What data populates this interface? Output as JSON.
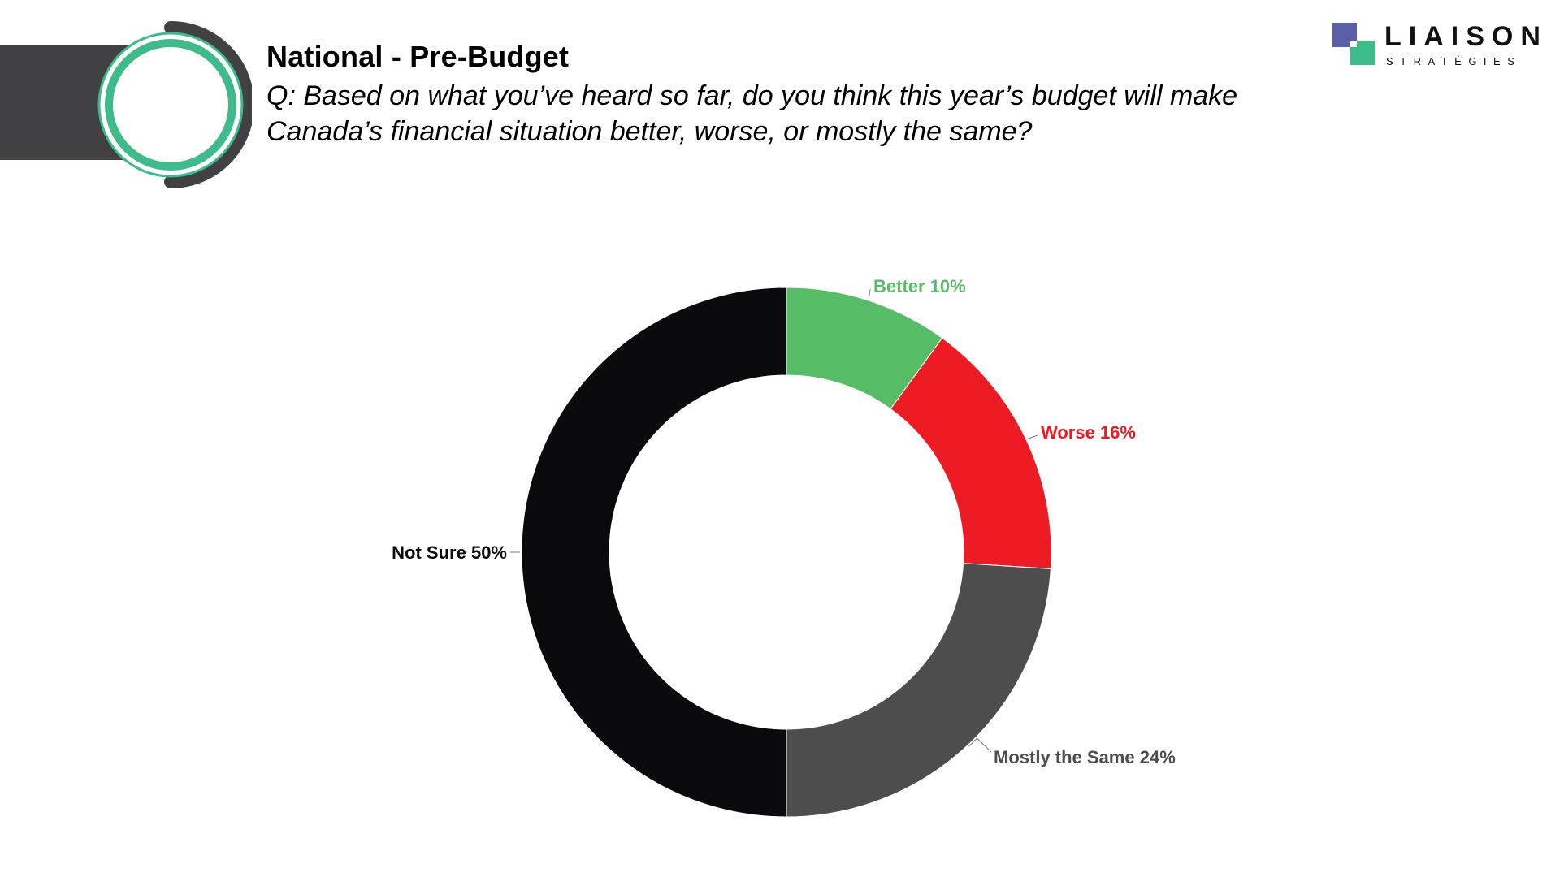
{
  "header": {
    "title": "National - Pre-Budget",
    "question": "Q: Based on what you’ve heard so far, do you think this year’s budget will make Canada’s financial situation better, worse, or mostly the same?"
  },
  "logo": {
    "name": "LIAISON",
    "subtitle": "STRATÉGIES",
    "colors": {
      "blue": "#5b5fa8",
      "green": "#3dbb8a"
    }
  },
  "theme": {
    "accent": "#3dbb8a",
    "dark": "#414042"
  },
  "chart_data": {
    "type": "pie",
    "style": "donut",
    "title": "",
    "slices": [
      {
        "label": "Better",
        "value": 10,
        "display": "Better 10%",
        "color": "#56bd66",
        "label_color": "#56bd66"
      },
      {
        "label": "Worse",
        "value": 16,
        "display": "Worse 16%",
        "color": "#ed1c24",
        "label_color": "#ed1c24"
      },
      {
        "label": "Mostly the Same",
        "value": 24,
        "display": "Mostly the Same 24%",
        "color": "#4d4d4d",
        "label_color": "#4d4d4d"
      },
      {
        "label": "Not Sure",
        "value": 50,
        "display": "Not Sure 50%",
        "color": "#0a0a0c",
        "label_color": "#0a0a0c"
      }
    ],
    "start_angle": "12 o'clock",
    "direction": "clockwise"
  }
}
